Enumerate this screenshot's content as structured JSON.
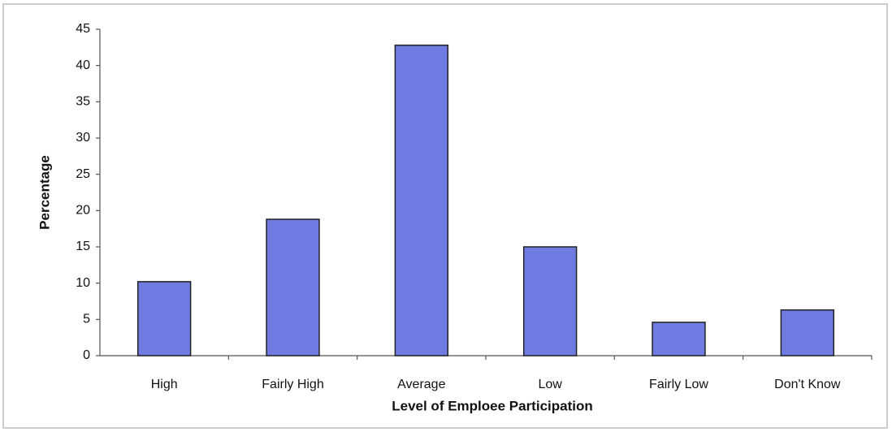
{
  "chart_data": {
    "type": "bar",
    "x_label": "Level of Emploee Participation",
    "y_label": "Percentage",
    "categories": [
      "High",
      "Fairly High",
      "Average",
      "Low",
      "Fairly Low",
      "Don't Know"
    ],
    "values": [
      10.2,
      18.8,
      42.8,
      15,
      4.6,
      6.3
    ],
    "color": "#6f7be0",
    "ylim": [
      0,
      45
    ],
    "yticks": [
      0,
      5,
      10,
      15,
      20,
      25,
      30,
      35,
      40,
      45
    ],
    "grid": false
  }
}
